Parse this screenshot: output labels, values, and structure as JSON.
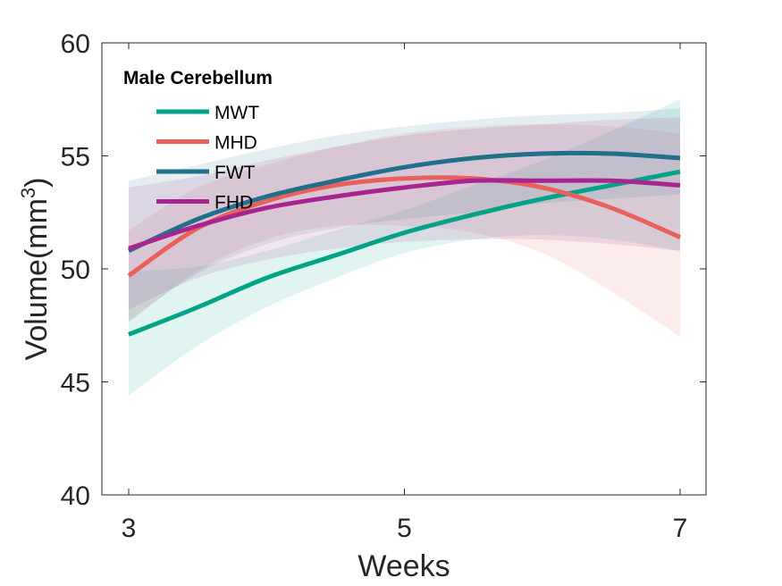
{
  "chart_data": {
    "type": "line",
    "title": "Male Cerebellum",
    "xlabel": "Weeks",
    "ylabel": "Volume(mm",
    "ylabel_superscript": "3",
    "ylabel_suffix": ")",
    "xlim": [
      3,
      7
    ],
    "ylim": [
      40,
      60
    ],
    "xticks": [
      "3",
      "5",
      "7"
    ],
    "yticks": [
      "40",
      "45",
      "50",
      "55",
      "60"
    ],
    "legend_position": "top-left",
    "grid": false,
    "x": [
      3,
      3.5,
      4,
      4.5,
      5,
      5.5,
      6,
      6.5,
      7
    ],
    "series": [
      {
        "name": "MWT",
        "color": "#00a388",
        "values": [
          47.1,
          48.3,
          49.6,
          50.6,
          51.6,
          52.4,
          53.1,
          53.7,
          54.3
        ],
        "ci_lower": [
          44.4,
          46.6,
          48.3,
          49.6,
          50.7,
          51.3,
          51.5,
          51.3,
          50.8
        ],
        "ci_upper": [
          49.9,
          50.1,
          50.8,
          51.7,
          52.6,
          53.7,
          54.8,
          56.1,
          57.5
        ]
      },
      {
        "name": "MHD",
        "color": "#e8605c",
        "values": [
          49.7,
          51.8,
          53.0,
          53.7,
          54.0,
          54.0,
          53.6,
          52.7,
          51.4
        ],
        "ci_lower": [
          47.6,
          49.9,
          51.3,
          51.9,
          51.9,
          51.6,
          50.7,
          49.0,
          47.0
        ],
        "ci_upper": [
          51.7,
          53.6,
          54.6,
          55.4,
          56.0,
          56.3,
          56.4,
          56.3,
          56.0
        ]
      },
      {
        "name": "FWT",
        "color": "#1f7088",
        "values": [
          50.8,
          52.2,
          53.2,
          53.9,
          54.5,
          54.9,
          55.1,
          55.1,
          54.9
        ],
        "ci_lower": [
          47.7,
          49.8,
          51.1,
          51.8,
          52.2,
          52.5,
          52.9,
          53.1,
          53.3
        ],
        "ci_upper": [
          53.9,
          54.6,
          55.3,
          55.9,
          56.3,
          56.6,
          56.8,
          56.9,
          57.1
        ]
      },
      {
        "name": "FHD",
        "color": "#a8248e",
        "values": [
          50.9,
          51.9,
          52.7,
          53.2,
          53.6,
          53.9,
          53.9,
          53.9,
          53.7
        ],
        "ci_lower": [
          48.2,
          49.6,
          50.4,
          50.9,
          51.2,
          51.3,
          51.3,
          51.1,
          50.8
        ],
        "ci_upper": [
          53.6,
          54.1,
          54.8,
          55.4,
          55.9,
          56.2,
          56.4,
          56.6,
          56.7
        ]
      }
    ]
  }
}
